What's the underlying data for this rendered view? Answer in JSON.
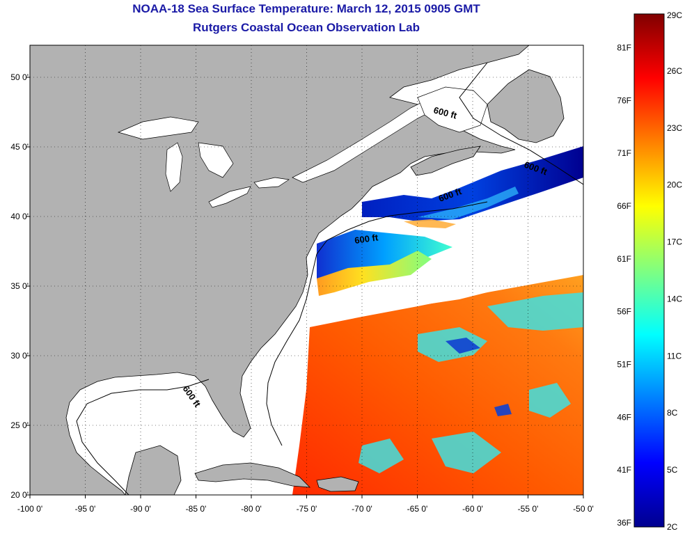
{
  "title": {
    "line1": "NOAA-18 Sea Surface Temperature:  March 12, 2015 0905 GMT",
    "line2": "Rutgers Coastal Ocean Observation Lab"
  },
  "axes": {
    "lon_ticks": [
      "-100 0'",
      "-95 0'",
      "-90 0'",
      "-85 0'",
      "-80 0'",
      "-75 0'",
      "-70 0'",
      "-65 0'",
      "-60 0'",
      "-55 0'",
      "-50 0'"
    ],
    "lon_values": [
      -100,
      -95,
      -90,
      -85,
      -80,
      -75,
      -70,
      -65,
      -60,
      -55,
      -50
    ],
    "lat_ticks": [
      "50 0'",
      "45 0'",
      "40 0'",
      "35 0'",
      "30 0'",
      "25 0'",
      "20 0'"
    ],
    "lat_values": [
      50,
      45,
      40,
      35,
      30,
      25,
      20
    ],
    "lon_range": [
      -100,
      -50
    ],
    "lat_range": [
      20,
      52.3
    ]
  },
  "contour_label": "600 ft",
  "colorbar": {
    "fahrenheit": [
      "81F",
      "76F",
      "71F",
      "66F",
      "61F",
      "56F",
      "51F",
      "46F",
      "41F",
      "36F"
    ],
    "celsius": [
      "29C",
      "26C",
      "23C",
      "20C",
      "17C",
      "14C",
      "11C",
      "8C",
      "5C",
      "2C"
    ],
    "min_c": 2,
    "max_c": 29,
    "colors": [
      "#00008f",
      "#0000ff",
      "#0080ff",
      "#00ffff",
      "#80ff80",
      "#ffff00",
      "#ff8000",
      "#ff0000",
      "#800000"
    ]
  },
  "map_colors": {
    "land": "#b2b2b2",
    "cloud": "#ffffff",
    "grid": "#000000"
  }
}
